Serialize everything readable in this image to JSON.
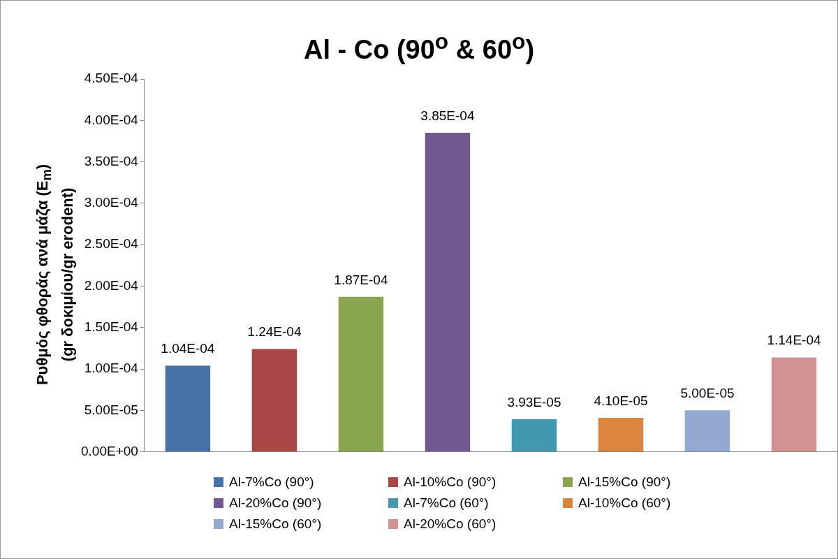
{
  "chart_data": {
    "type": "bar",
    "title": "Al - Co (90$^{o}$ & 60$^{o}$)",
    "ylabel": "Ρυθμός φθοράς ανά μάζα (E$_{m}$)\n(gr δοκιμίου/gr erodent)",
    "categories": [
      null,
      null,
      null,
      null,
      null,
      null,
      null,
      null
    ],
    "series": [
      {
        "name": "Al-7%Co (90°)",
        "color": "#4672a8",
        "values": [
          0.000104,
          null,
          null,
          null,
          null,
          null,
          null,
          null
        ],
        "value_labels": [
          "1.04E-04",
          null,
          null,
          null,
          null,
          null,
          null,
          null
        ]
      },
      {
        "name": "Al-10%Co (90°)",
        "color": "#aa4644",
        "values": [
          null,
          0.000124,
          null,
          null,
          null,
          null,
          null,
          null
        ],
        "value_labels": [
          null,
          "1.24E-04",
          null,
          null,
          null,
          null,
          null,
          null
        ]
      },
      {
        "name": "Al-15%Co (90°)",
        "color": "#89a54e",
        "values": [
          null,
          null,
          0.000187,
          null,
          null,
          null,
          null,
          null
        ],
        "value_labels": [
          null,
          null,
          "1.87E-04",
          null,
          null,
          null,
          null,
          null
        ]
      },
      {
        "name": "Al-20%Co (90°)",
        "color": "#71588f",
        "values": [
          null,
          null,
          null,
          0.000385,
          null,
          null,
          null,
          null
        ],
        "value_labels": [
          null,
          null,
          null,
          "3.85E-04",
          null,
          null,
          null,
          null
        ]
      },
      {
        "name": "Al-7%Co (60°)",
        "color": "#4198af",
        "values": [
          null,
          null,
          null,
          null,
          3.93e-05,
          null,
          null,
          null
        ],
        "value_labels": [
          null,
          null,
          null,
          null,
          "3.93E-05",
          null,
          null,
          null
        ]
      },
      {
        "name": "Al-10%Co (60°)",
        "color": "#db843d",
        "values": [
          null,
          null,
          null,
          null,
          null,
          4.1e-05,
          null,
          null
        ],
        "value_labels": [
          null,
          null,
          null,
          null,
          null,
          "4.10E-05",
          null,
          null
        ]
      },
      {
        "name": "Al-15%Co (60°)",
        "color": "#93a9cf",
        "values": [
          null,
          null,
          null,
          null,
          null,
          null,
          5e-05,
          null
        ],
        "value_labels": [
          null,
          null,
          null,
          null,
          null,
          null,
          "5.00E-05",
          null
        ]
      },
      {
        "name": "Al-20%Co (60°)",
        "color": "#d19392",
        "values": [
          null,
          null,
          null,
          null,
          null,
          null,
          null,
          0.000114
        ],
        "value_labels": [
          null,
          null,
          null,
          null,
          null,
          null,
          null,
          "1.14E-04"
        ]
      }
    ],
    "ylim": [
      0,
      0.00045
    ],
    "yticks": [
      {
        "value": 0,
        "label": "0.00E+00"
      },
      {
        "value": 5e-05,
        "label": "5.00E-05"
      },
      {
        "value": 0.0001,
        "label": "1.00E-04"
      },
      {
        "value": 0.00015,
        "label": "1.50E-04"
      },
      {
        "value": 0.0002,
        "label": "2.00E-04"
      },
      {
        "value": 0.00025,
        "label": "2.50E-04"
      },
      {
        "value": 0.0003,
        "label": "3.00E-04"
      },
      {
        "value": 0.00035,
        "label": "3.50E-04"
      },
      {
        "value": 0.0004,
        "label": "4.00E-04"
      },
      {
        "value": 0.00045,
        "label": "4.50E-04"
      }
    ],
    "grid": false,
    "legend": "bottom"
  }
}
